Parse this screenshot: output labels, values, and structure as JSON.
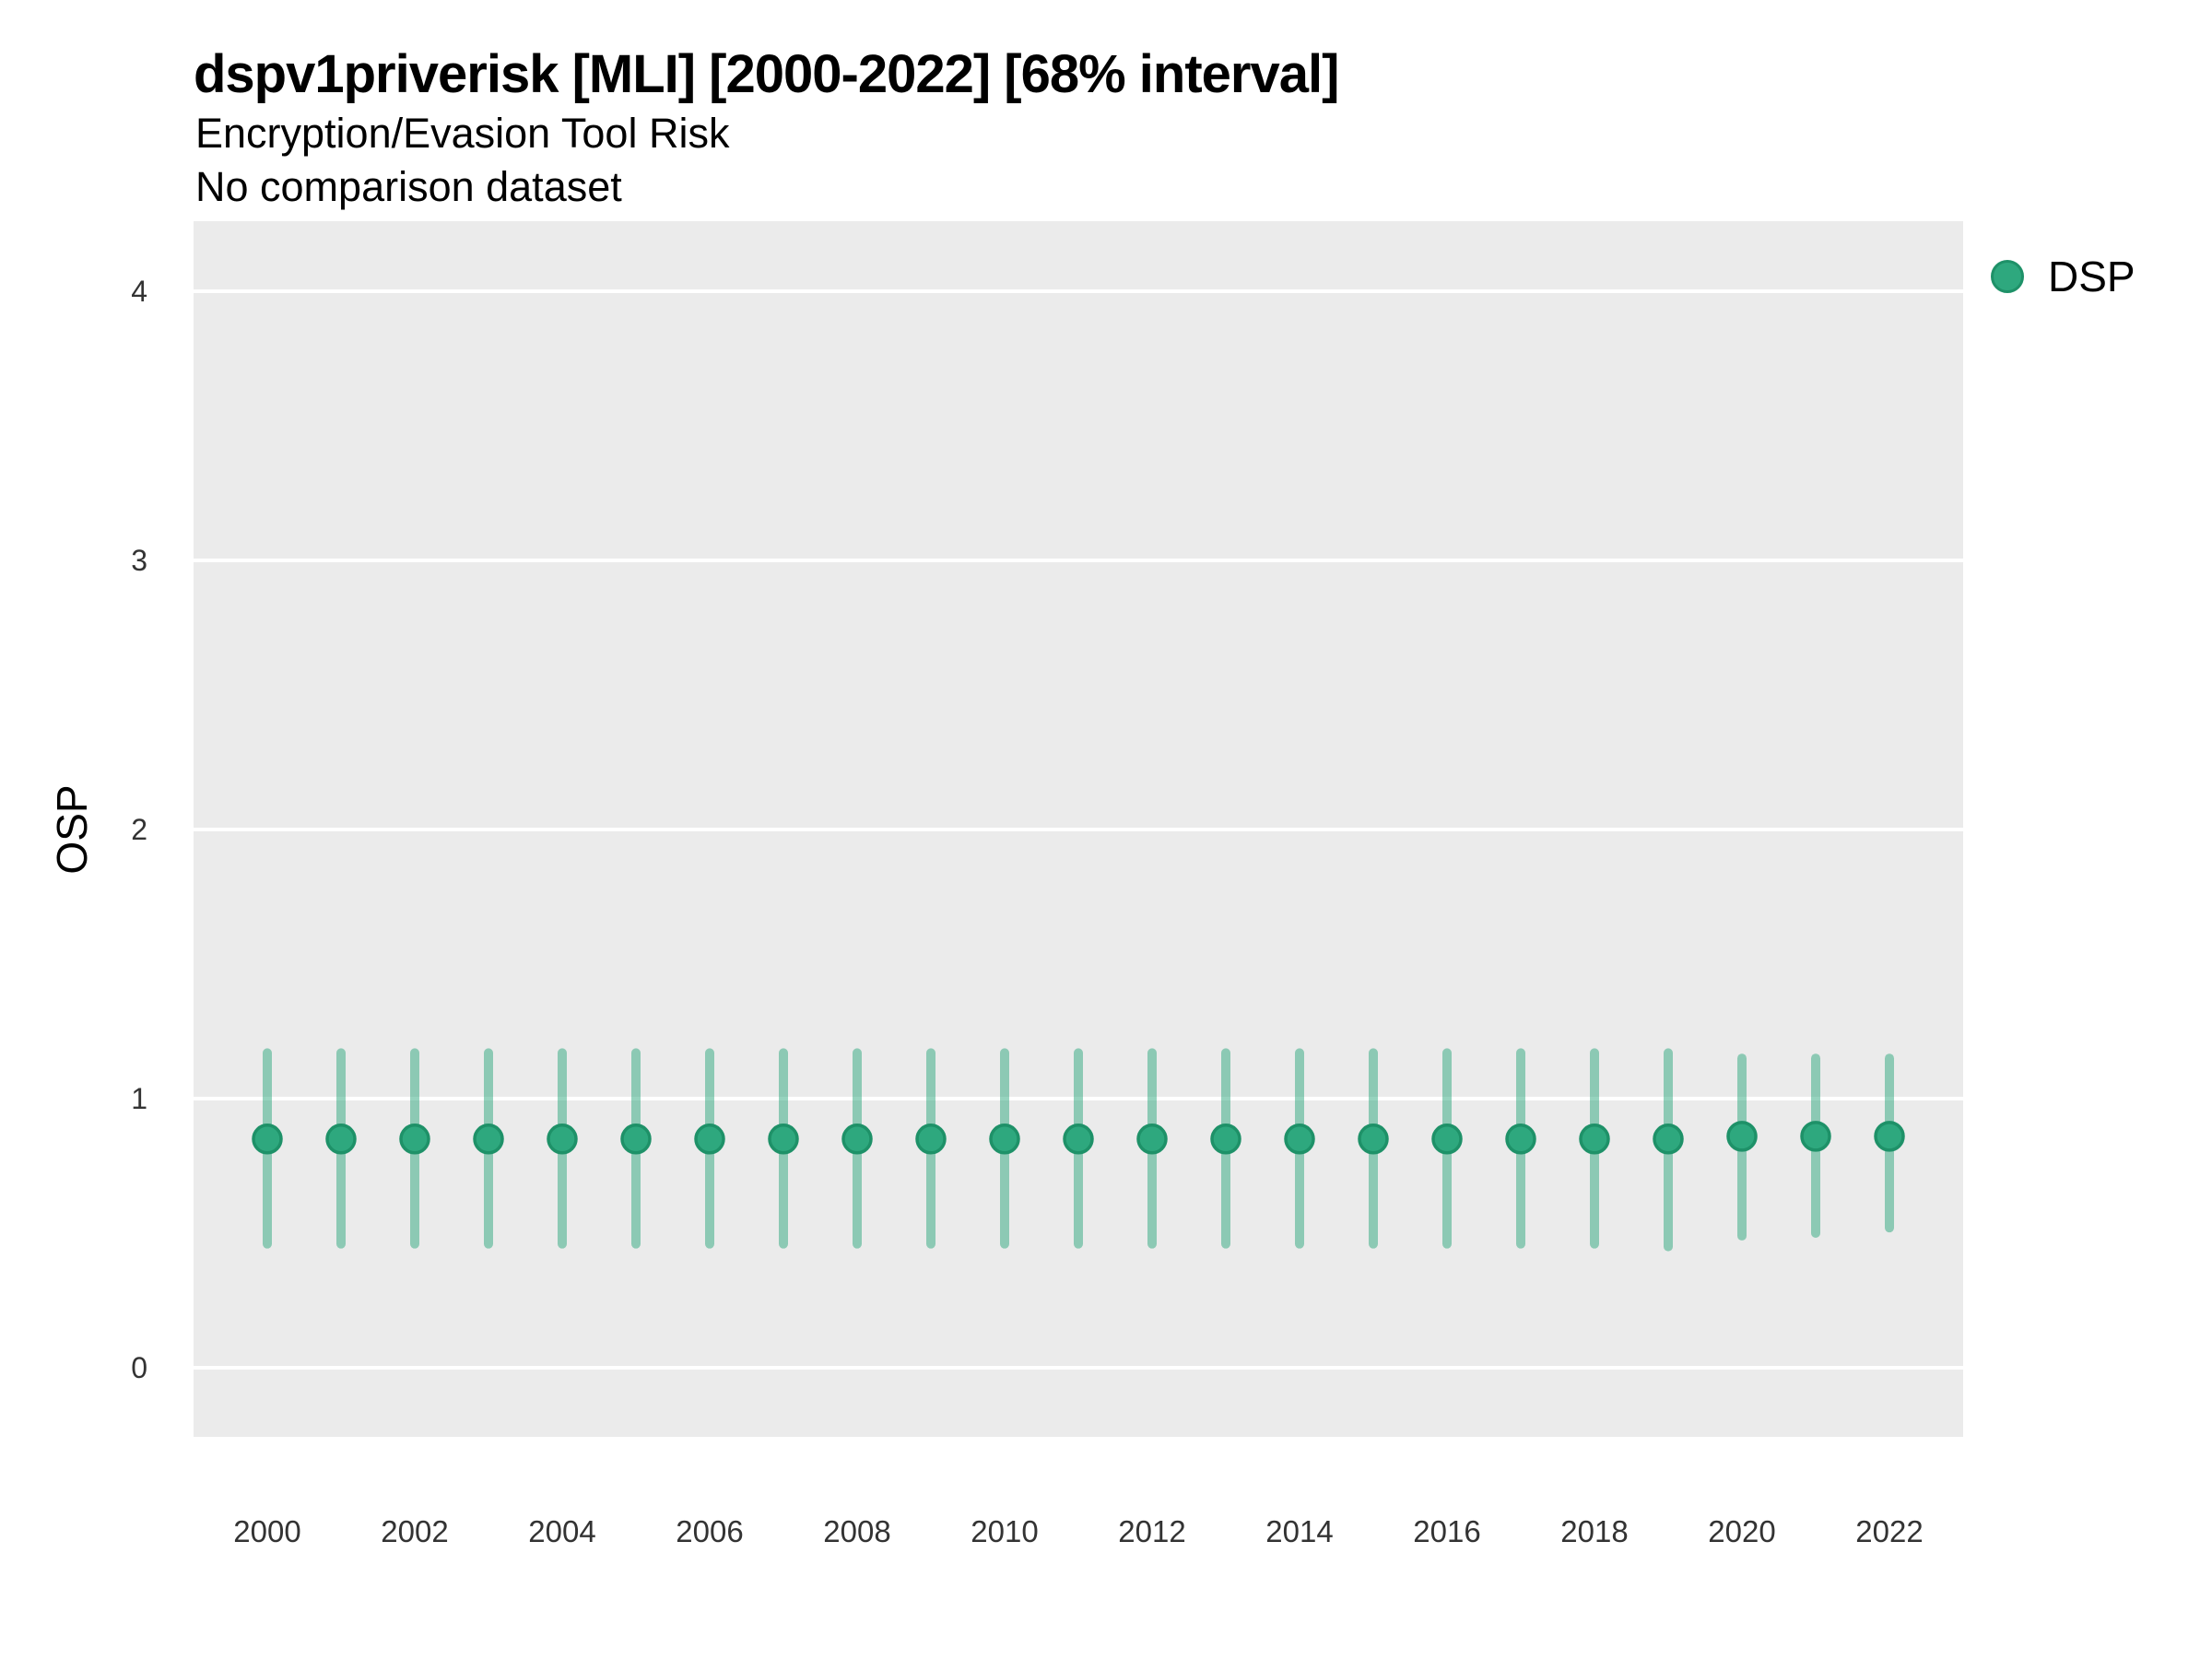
{
  "header": {
    "title": "dspv1priverisk [MLI] [2000-2022] [68% interval]",
    "subtitle": "Encryption/Evasion Tool Risk",
    "note": "No comparison dataset"
  },
  "legend": {
    "position": "right",
    "items": [
      {
        "label": "DSP",
        "marker": "circle",
        "color": "#2EA87E"
      }
    ]
  },
  "colors": {
    "point_fill": "#2EA87E",
    "point_stroke": "#1E9168",
    "interval_line": "rgba(46,168,126,0.5)",
    "panel_bg": "#EBEBEB",
    "gridline": "#FFFFFF",
    "tick_text": "#333333",
    "text": "#000000"
  },
  "chart_data": {
    "type": "scatter",
    "title": "dspv1priverisk [MLI] [2000-2022] [68% interval]",
    "subtitle": "Encryption/Evasion Tool Risk",
    "annotation": "No comparison dataset",
    "xlabel": "",
    "ylabel": "OSP",
    "ylim": [
      -0.26,
      4.26
    ],
    "y_ticks": [
      0,
      1,
      2,
      3,
      4
    ],
    "x_tick_labels": [
      "2000",
      "2002",
      "2004",
      "2006",
      "2008",
      "2010",
      "2012",
      "2014",
      "2016",
      "2018",
      "2020",
      "2022"
    ],
    "grid": "horizontal-major-only",
    "legend_position": "right",
    "interval": "68%",
    "series": [
      {
        "name": "DSP",
        "x": [
          2000,
          2001,
          2002,
          2003,
          2004,
          2005,
          2006,
          2007,
          2008,
          2009,
          2010,
          2011,
          2012,
          2013,
          2014,
          2015,
          2016,
          2017,
          2018,
          2019,
          2020,
          2021,
          2022
        ],
        "y": [
          0.85,
          0.85,
          0.85,
          0.85,
          0.85,
          0.85,
          0.85,
          0.85,
          0.85,
          0.85,
          0.85,
          0.85,
          0.85,
          0.85,
          0.85,
          0.85,
          0.85,
          0.85,
          0.85,
          0.85,
          0.86,
          0.86,
          0.86
        ],
        "y_lo": [
          0.46,
          0.46,
          0.46,
          0.46,
          0.46,
          0.46,
          0.46,
          0.46,
          0.46,
          0.46,
          0.46,
          0.46,
          0.46,
          0.46,
          0.46,
          0.46,
          0.46,
          0.46,
          0.46,
          0.45,
          0.49,
          0.5,
          0.52
        ],
        "y_hi": [
          1.17,
          1.17,
          1.17,
          1.17,
          1.17,
          1.17,
          1.17,
          1.17,
          1.17,
          1.17,
          1.17,
          1.17,
          1.17,
          1.17,
          1.17,
          1.17,
          1.17,
          1.17,
          1.17,
          1.17,
          1.15,
          1.15,
          1.15
        ]
      }
    ]
  }
}
